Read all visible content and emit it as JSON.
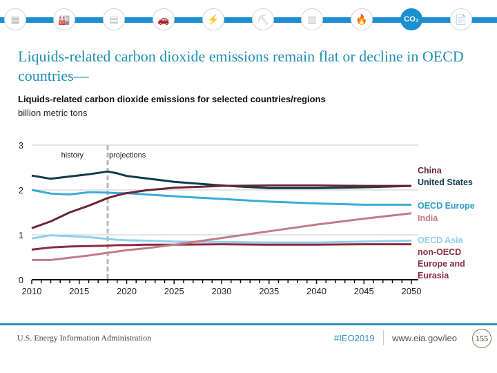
{
  "nav": {
    "icons": [
      {
        "name": "all-sectors-icon",
        "glyph": "▦"
      },
      {
        "name": "industrial-icon",
        "glyph": "🏭"
      },
      {
        "name": "buildings-icon",
        "glyph": "▤"
      },
      {
        "name": "transportation-icon",
        "glyph": "🚗"
      },
      {
        "name": "electricity-icon",
        "glyph": "⚡"
      },
      {
        "name": "coal-icon",
        "glyph": "⛏"
      },
      {
        "name": "petroleum-icon",
        "glyph": "▥"
      },
      {
        "name": "natural-gas-icon",
        "glyph": "🔥"
      },
      {
        "name": "co2-icon",
        "glyph": "CO₂",
        "active": true
      },
      {
        "name": "documents-icon",
        "glyph": "📄"
      }
    ]
  },
  "header": {
    "title": "Liquids-related carbon dioxide emissions remain flat or decline in OECD countries—",
    "subtitle": "Liquids-related carbon dioxide emissions for selected countries/regions",
    "units": "billion metric tons"
  },
  "chart_data": {
    "type": "line",
    "title": "Liquids-related carbon dioxide emissions for selected countries/regions",
    "ylabel": "billion metric tons",
    "xlabel": "",
    "xlim": [
      2010,
      2050
    ],
    "ylim": [
      0,
      3
    ],
    "yticks": [
      "0",
      "1",
      "2",
      "3"
    ],
    "xticks": [
      "2010",
      "2015",
      "2020",
      "2025",
      "2030",
      "2035",
      "2040",
      "2045",
      "2050"
    ],
    "grid": true,
    "divider_year": 2018,
    "annotations": {
      "history": "history",
      "projections": "projections"
    },
    "x": [
      2010,
      2012,
      2014,
      2016,
      2018,
      2019,
      2020,
      2022,
      2025,
      2030,
      2035,
      2040,
      2045,
      2050
    ],
    "series": [
      {
        "name": "China",
        "color": "#6b2634",
        "values": [
          1.15,
          1.3,
          1.5,
          1.65,
          1.82,
          1.88,
          1.93,
          1.99,
          2.05,
          2.09,
          2.1,
          2.1,
          2.09,
          2.09
        ]
      },
      {
        "name": "United States",
        "color": "#0f3b4c",
        "values": [
          2.32,
          2.25,
          2.3,
          2.35,
          2.41,
          2.37,
          2.31,
          2.26,
          2.18,
          2.1,
          2.04,
          2.04,
          2.06,
          2.09
        ]
      },
      {
        "name": "OECD Europe",
        "color": "#3aaad8",
        "values": [
          2.0,
          1.92,
          1.9,
          1.95,
          1.94,
          1.93,
          1.93,
          1.9,
          1.86,
          1.8,
          1.74,
          1.7,
          1.67,
          1.67
        ]
      },
      {
        "name": "India",
        "color": "#c47a8a",
        "values": [
          0.44,
          0.44,
          0.49,
          0.54,
          0.6,
          0.63,
          0.66,
          0.7,
          0.78,
          0.93,
          1.08,
          1.23,
          1.36,
          1.48
        ]
      },
      {
        "name": "OECD Asia",
        "color": "#8fd0ec",
        "values": [
          0.92,
          0.99,
          0.97,
          0.95,
          0.91,
          0.89,
          0.88,
          0.87,
          0.85,
          0.84,
          0.83,
          0.83,
          0.85,
          0.87
        ]
      },
      {
        "name": "non-OECD Europe and Eurasia",
        "color": "#8a2c44",
        "values": [
          0.67,
          0.72,
          0.74,
          0.75,
          0.76,
          0.77,
          0.77,
          0.78,
          0.78,
          0.79,
          0.78,
          0.78,
          0.79,
          0.79
        ]
      }
    ],
    "legend": [
      {
        "label": "China",
        "color": "#6b2634"
      },
      {
        "label": "United States",
        "color": "#0f3b4c"
      },
      {
        "label": "OECD Europe",
        "color": "#2a9cc8"
      },
      {
        "label": "India",
        "color": "#c47a8a"
      },
      {
        "label": "OECD Asia",
        "color": "#8fd0ec"
      },
      {
        "label": "non-OECD",
        "color": "#8a2c44"
      },
      {
        "label": "Europe and",
        "color": "#8a2c44"
      },
      {
        "label": "Eurasia",
        "color": "#8a2c44"
      }
    ]
  },
  "footer": {
    "org": "U.S. Energy Information Administration",
    "hashtag": "#IEO2019",
    "url": "www.eia.gov/ieo",
    "page": "155"
  }
}
